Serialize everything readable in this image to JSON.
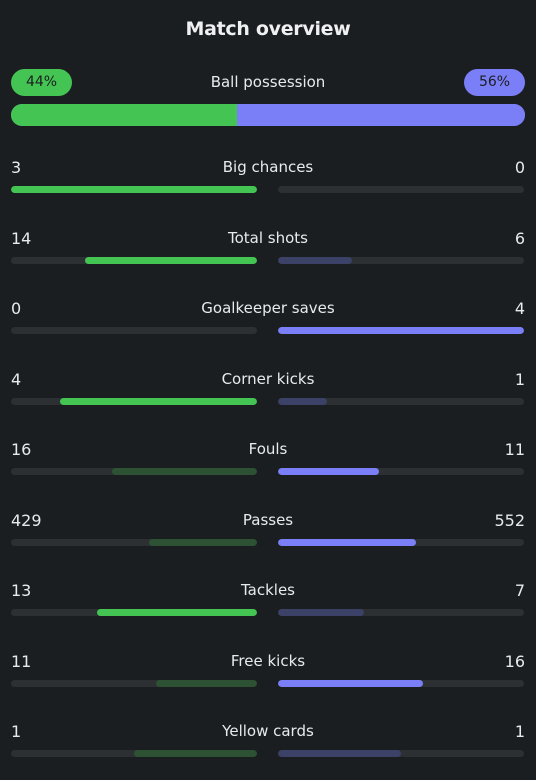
{
  "title": "Match overview",
  "possession": {
    "label": "Ball possession",
    "home_text": "44%",
    "away_text": "56%",
    "home_fraction": 0.44,
    "away_fraction": 0.56
  },
  "colors": {
    "home": "#44c553",
    "away": "#7b7ff7",
    "home_dim": "#2c5233",
    "away_dim": "#3c4167",
    "track": "#2c3033",
    "background": "#1b1e21"
  },
  "stats": [
    {
      "label": "Big chances",
      "home": "3",
      "away": "0",
      "home_fraction": 1.0,
      "away_fraction": 0.0,
      "leader": "home"
    },
    {
      "label": "Total shots",
      "home": "14",
      "away": "6",
      "home_fraction": 0.7,
      "away_fraction": 0.3,
      "leader": "home"
    },
    {
      "label": "Goalkeeper saves",
      "home": "0",
      "away": "4",
      "home_fraction": 0.0,
      "away_fraction": 1.0,
      "leader": "away"
    },
    {
      "label": "Corner kicks",
      "home": "4",
      "away": "1",
      "home_fraction": 0.8,
      "away_fraction": 0.2,
      "leader": "home"
    },
    {
      "label": "Fouls",
      "home": "16",
      "away": "11",
      "home_fraction": 0.59,
      "away_fraction": 0.41,
      "leader": "away"
    },
    {
      "label": "Passes",
      "home": "429",
      "away": "552",
      "home_fraction": 0.44,
      "away_fraction": 0.56,
      "leader": "away"
    },
    {
      "label": "Tackles",
      "home": "13",
      "away": "7",
      "home_fraction": 0.65,
      "away_fraction": 0.35,
      "leader": "home"
    },
    {
      "label": "Free kicks",
      "home": "11",
      "away": "16",
      "home_fraction": 0.41,
      "away_fraction": 0.59,
      "leader": "away"
    },
    {
      "label": "Yellow cards",
      "home": "1",
      "away": "1",
      "home_fraction": 0.5,
      "away_fraction": 0.5,
      "leader": "none"
    }
  ]
}
